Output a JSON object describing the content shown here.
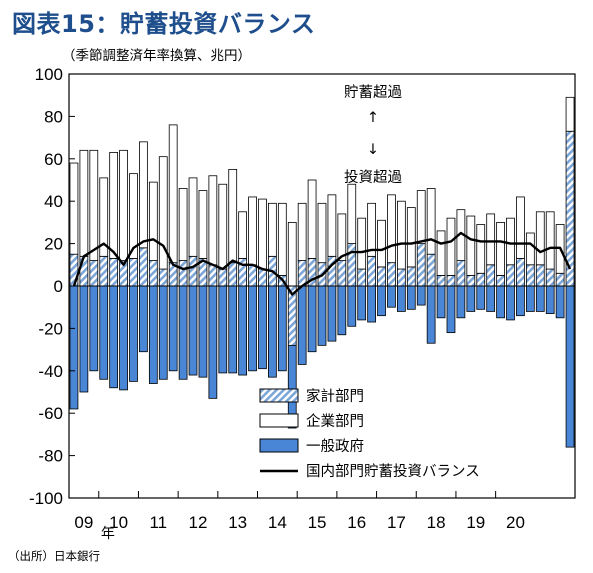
{
  "title": "図表15：貯蓄投資バランス",
  "unit_note": "（季節調整済年率換算、兆円）",
  "source_note": "（出所）日本銀行",
  "annotations": {
    "up": "貯蓄超過",
    "down": "投資超過",
    "up_arrow": "↑",
    "down_arrow": "↓"
  },
  "nen_label": "年",
  "colors": {
    "household": "#7da6d8",
    "corporate": "#ffffff",
    "government": "#4a86d6",
    "line": "#000000"
  },
  "chart_data": {
    "type": "bar",
    "ylim": [
      -100,
      100
    ],
    "yticks": [
      -100,
      -80,
      -60,
      -40,
      -20,
      0,
      20,
      40,
      60,
      80,
      100
    ],
    "xtick_labels": [
      "09",
      "10",
      "11",
      "12",
      "13",
      "14",
      "15",
      "16",
      "17",
      "18",
      "19",
      "20"
    ],
    "x_start": "2009Q2",
    "stacking": "positive components stacked upward from 0, negative components stacked downward from 0",
    "series": [
      {
        "name": "家計部門",
        "key": "household",
        "values": [
          15,
          14,
          12,
          14,
          13,
          12,
          13,
          18,
          12,
          8,
          11,
          12,
          14,
          13,
          10,
          8,
          11,
          13,
          10,
          8,
          14,
          5,
          -28,
          12,
          13,
          11,
          14,
          12,
          20,
          8,
          14,
          9,
          11,
          8,
          9,
          20,
          15,
          5,
          5,
          12,
          5,
          6,
          10,
          5,
          10,
          13,
          10,
          10,
          8,
          6,
          73
        ]
      },
      {
        "name": "企業部門",
        "key": "corporate",
        "values": [
          43,
          50,
          52,
          37,
          50,
          52,
          40,
          50,
          37,
          53,
          65,
          34,
          37,
          32,
          42,
          40,
          44,
          22,
          32,
          33,
          25,
          34,
          30,
          27,
          37,
          28,
          29,
          22,
          28,
          24,
          25,
          22,
          32,
          32,
          28,
          25,
          31,
          21,
          27,
          24,
          28,
          23,
          24,
          25,
          22,
          29,
          15,
          25,
          27,
          23,
          16
        ]
      },
      {
        "name": "一般政府",
        "key": "government",
        "values": [
          -58,
          -50,
          -40,
          -44,
          -48,
          -49,
          -45,
          -31,
          -46,
          -44,
          -40,
          -44,
          -42,
          -43,
          -53,
          -41,
          -41,
          -42,
          -40,
          -39,
          -43,
          -40,
          -39,
          -37,
          -31,
          -28,
          -26,
          -23,
          -19,
          -16,
          -17,
          -14,
          -10,
          -12,
          -11,
          -9,
          -27,
          -15,
          -22,
          -15,
          -12,
          -11,
          -12,
          -15,
          -16,
          -14,
          -12,
          -12,
          -13,
          -15,
          -76
        ]
      },
      {
        "name": "国内部門貯蓄投資バランス",
        "key": "balance",
        "values": [
          0,
          14,
          17,
          20,
          16,
          10,
          18,
          21,
          22,
          19,
          10,
          8,
          9,
          12,
          10,
          8,
          12,
          10,
          10,
          8,
          7,
          3,
          -4,
          0,
          3,
          5,
          10,
          14,
          16,
          16,
          17,
          17,
          19,
          20,
          20,
          21,
          22,
          20,
          21,
          25,
          22,
          21,
          21,
          21,
          20,
          20,
          20,
          16,
          18,
          18,
          8
        ]
      }
    ]
  }
}
